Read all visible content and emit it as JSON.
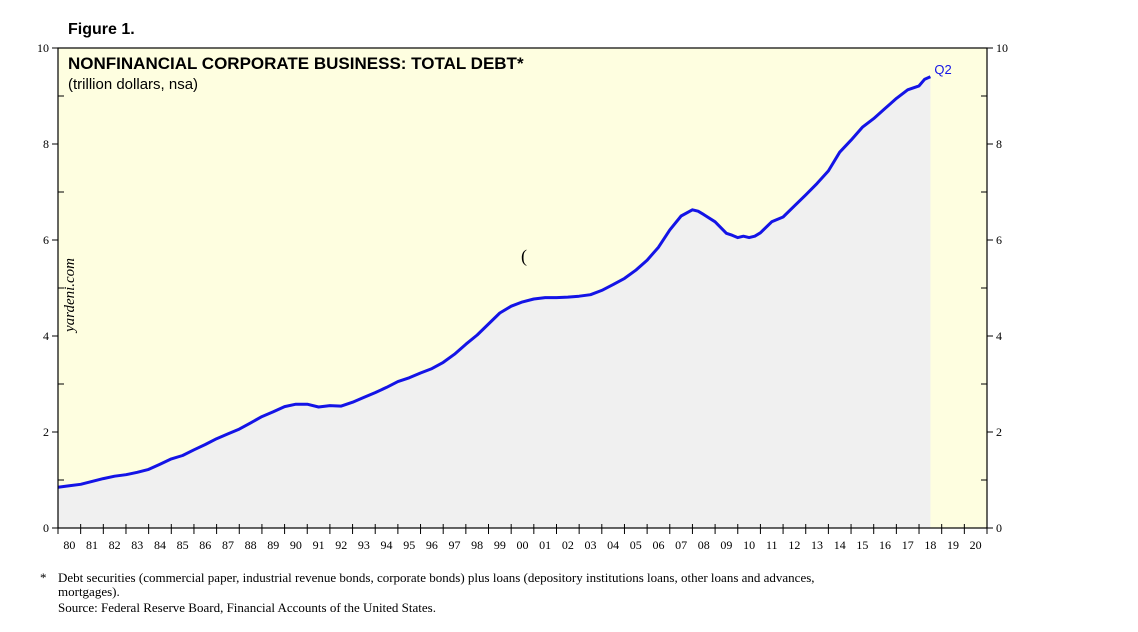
{
  "figure_label": "Figure 1.",
  "chart_data": {
    "type": "area",
    "title": "NONFINANCIAL CORPORATE BUSINESS: TOTAL DEBT*",
    "subtitle": "(trillion dollars, nsa)",
    "watermark": "yardeni.com",
    "stray_mark": "(",
    "end_label": "Q2",
    "ylim": [
      0,
      10
    ],
    "yticks": [
      0,
      2,
      4,
      6,
      8,
      10
    ],
    "xlim": [
      1980,
      2021
    ],
    "xtick_labels": [
      "80",
      "81",
      "82",
      "83",
      "84",
      "85",
      "86",
      "87",
      "88",
      "89",
      "90",
      "91",
      "92",
      "93",
      "94",
      "95",
      "96",
      "97",
      "98",
      "99",
      "00",
      "01",
      "02",
      "03",
      "04",
      "05",
      "06",
      "07",
      "08",
      "09",
      "10",
      "11",
      "12",
      "13",
      "14",
      "15",
      "16",
      "17",
      "18",
      "19",
      "20"
    ],
    "grid": false,
    "legend": "none",
    "colors": {
      "plot_background": "#fefee0",
      "area_fill": "#f0f0f0",
      "line": "#1414e6",
      "axis": "#000000"
    },
    "series": [
      {
        "x": [
          1980.0,
          1980.5,
          1981.0,
          1981.5,
          1982.0,
          1982.5,
          1983.0,
          1983.5,
          1984.0,
          1984.5,
          1985.0,
          1985.5,
          1986.0,
          1986.5,
          1987.0,
          1987.5,
          1988.0,
          1988.5,
          1989.0,
          1989.5,
          1990.0,
          1990.5,
          1991.0,
          1991.5,
          1992.0,
          1992.5,
          1993.0,
          1993.5,
          1994.0,
          1994.5,
          1995.0,
          1995.5,
          1996.0,
          1996.5,
          1997.0,
          1997.5,
          1998.0,
          1998.5,
          1999.0,
          1999.5,
          2000.0,
          2000.5,
          2001.0,
          2001.5,
          2002.0,
          2002.5,
          2003.0,
          2003.5,
          2004.0,
          2004.5,
          2005.0,
          2005.5,
          2006.0,
          2006.5,
          2007.0,
          2007.5,
          2008.0,
          2008.25,
          2008.5,
          2009.0,
          2009.5,
          2009.75,
          2010.0,
          2010.25,
          2010.5,
          2010.75,
          2011.0,
          2011.5,
          2012.0,
          2012.5,
          2013.0,
          2013.5,
          2014.0,
          2014.5,
          2015.0,
          2015.5,
          2016.0,
          2016.5,
          2017.0,
          2017.5,
          2018.0,
          2018.25,
          2018.5
        ],
        "values": [
          0.85,
          0.88,
          0.91,
          0.97,
          1.03,
          1.08,
          1.11,
          1.16,
          1.22,
          1.33,
          1.44,
          1.51,
          1.63,
          1.74,
          1.86,
          1.96,
          2.06,
          2.19,
          2.32,
          2.42,
          2.53,
          2.58,
          2.58,
          2.52,
          2.55,
          2.54,
          2.62,
          2.72,
          2.82,
          2.93,
          3.05,
          3.13,
          3.23,
          3.32,
          3.45,
          3.62,
          3.83,
          4.02,
          4.25,
          4.48,
          4.62,
          4.71,
          4.77,
          4.8,
          4.8,
          4.81,
          4.83,
          4.86,
          4.95,
          5.07,
          5.2,
          5.37,
          5.58,
          5.85,
          6.21,
          6.5,
          6.63,
          6.6,
          6.53,
          6.38,
          6.14,
          6.1,
          6.05,
          6.08,
          6.05,
          6.08,
          6.15,
          6.38,
          6.48,
          6.71,
          6.94,
          7.18,
          7.44,
          7.83,
          8.08,
          8.35,
          8.53,
          8.74,
          8.95,
          9.13,
          9.21,
          9.35,
          9.4
        ]
      }
    ]
  },
  "footnote": {
    "marker": "*",
    "line1": "Debt securities (commercial paper, industrial revenue bonds, corporate bonds) plus loans (depository institutions loans, other loans and advances,",
    "line2": "mortgages).",
    "source": "Source: Federal Reserve Board, Financial Accounts of the United States."
  }
}
